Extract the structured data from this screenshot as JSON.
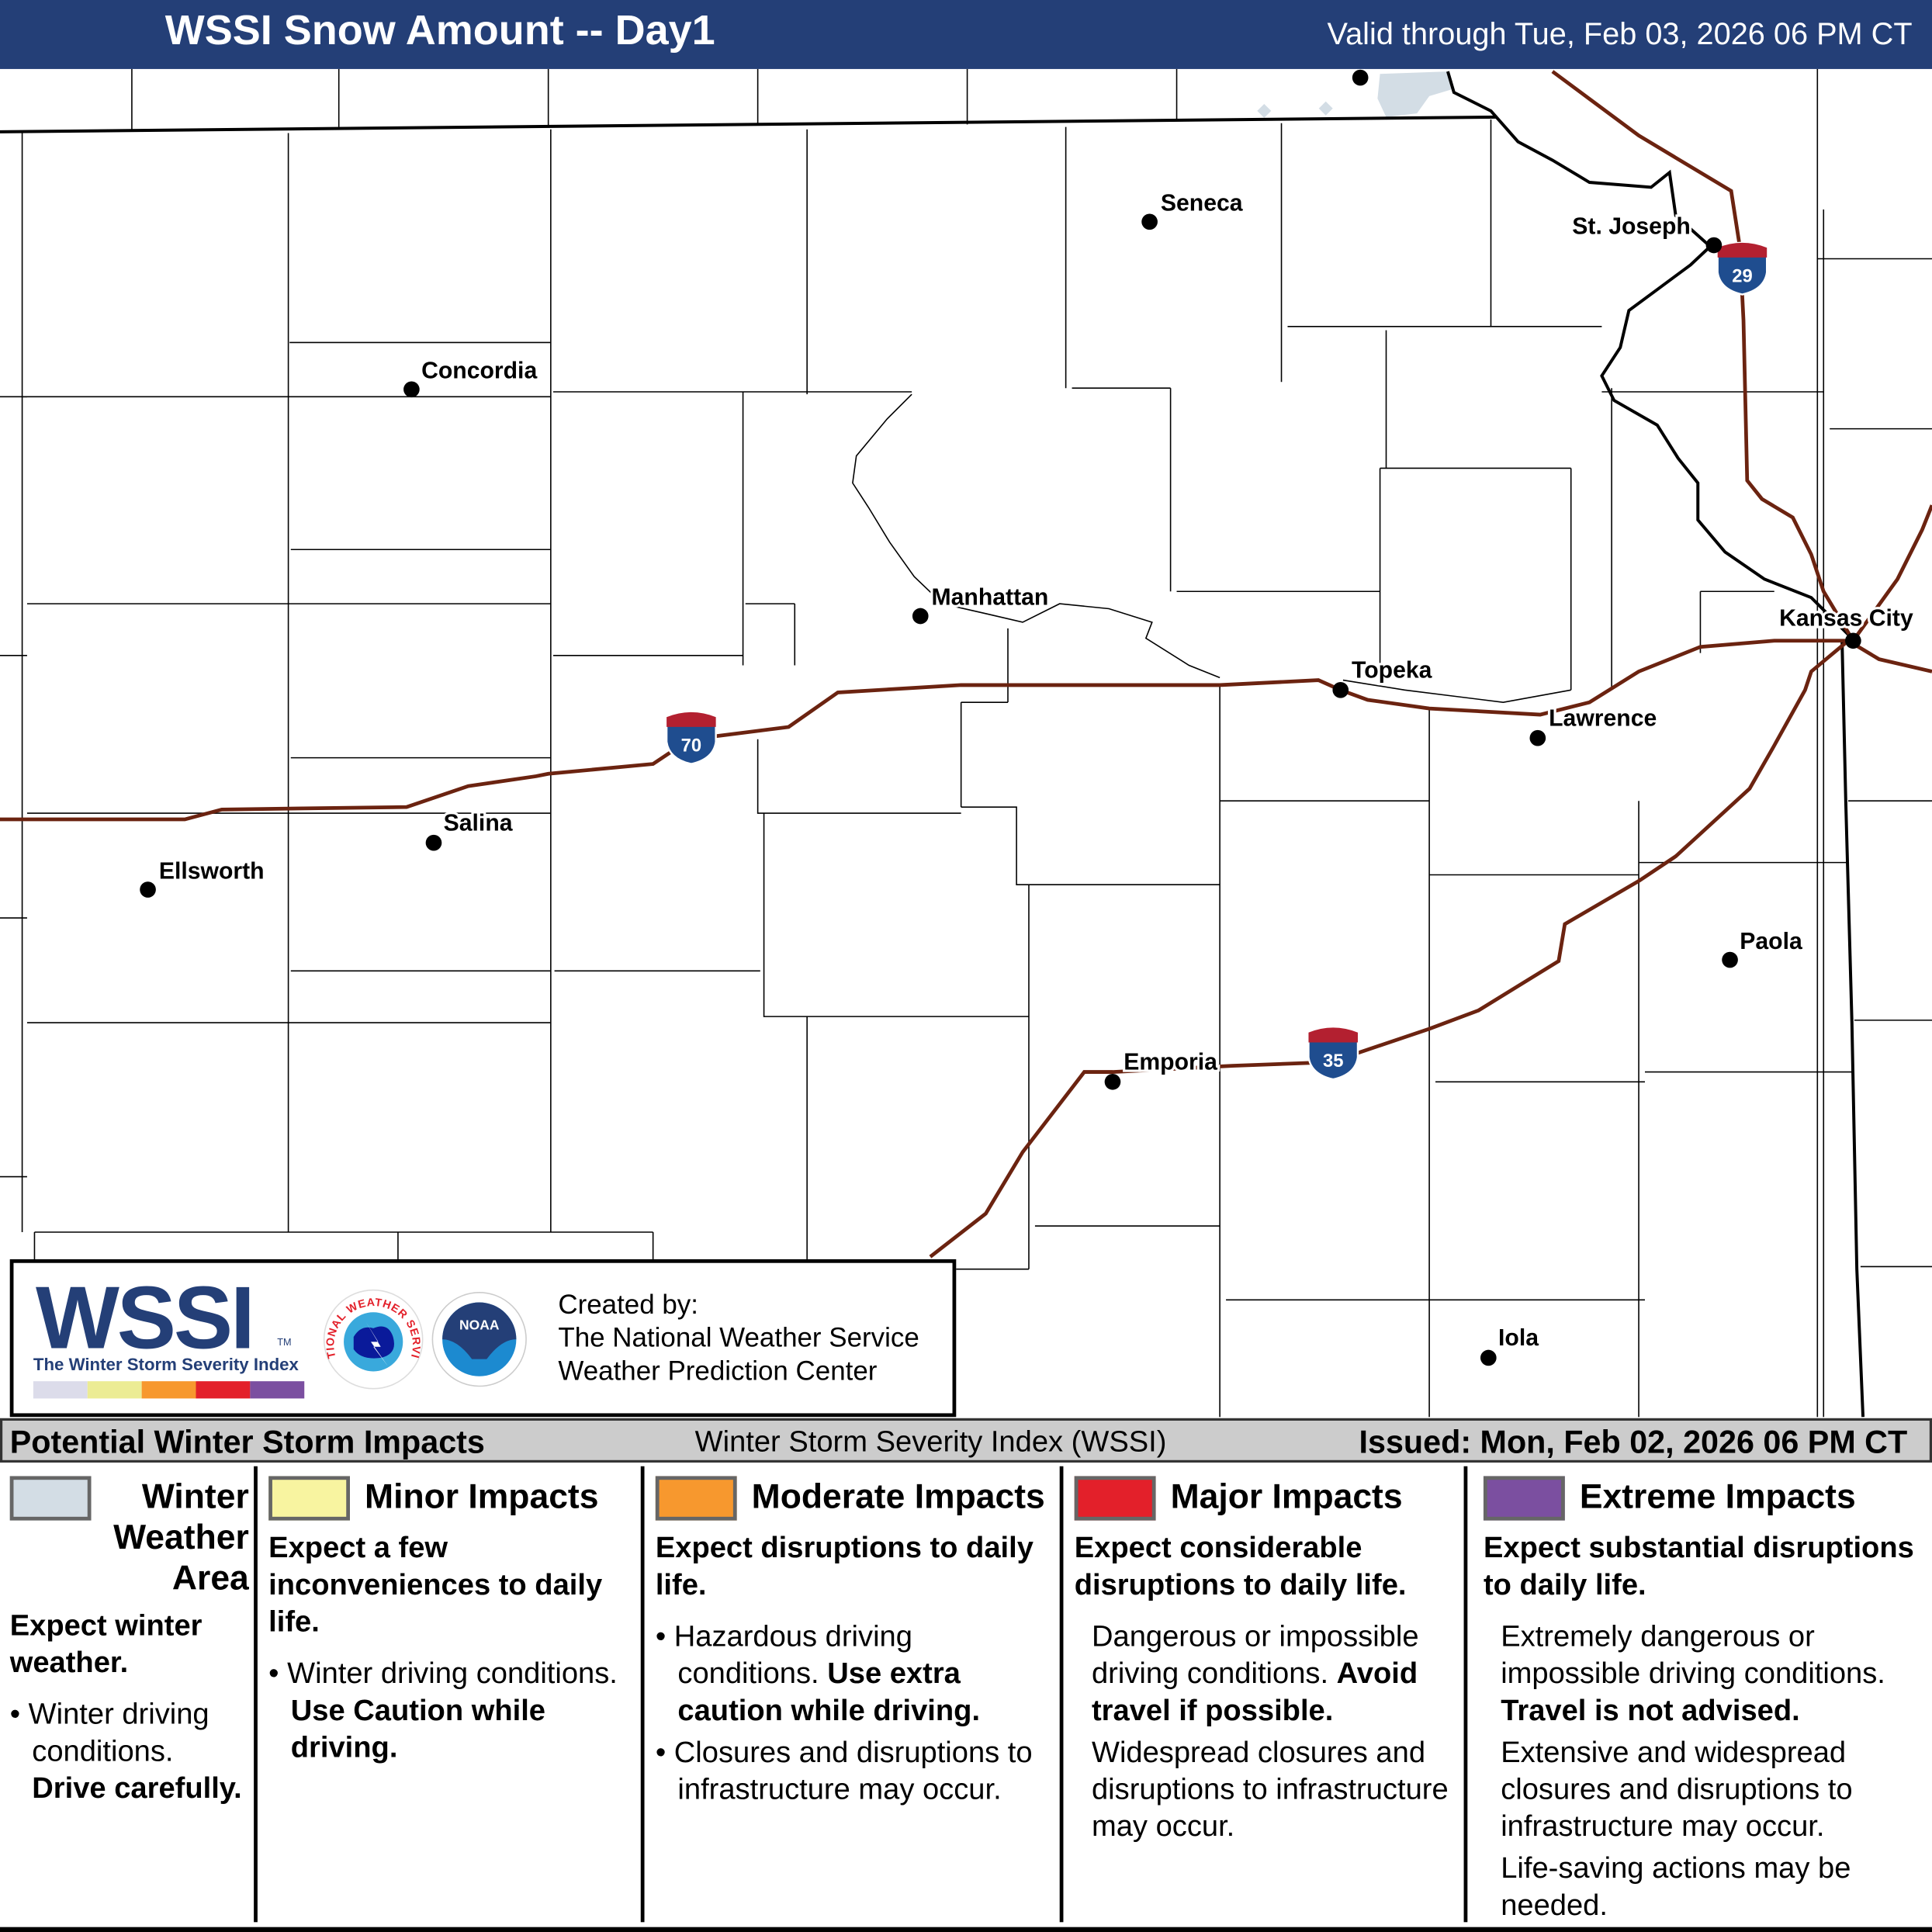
{
  "header": {
    "title": "WSSI Snow Amount -- Day1",
    "valid": "Valid through Tue, Feb 03, 2026 06 PM CT"
  },
  "map": {
    "cities": [
      {
        "name": "Seneca"
      },
      {
        "name": "Concordia"
      },
      {
        "name": "Manhattan"
      },
      {
        "name": "Topeka"
      },
      {
        "name": "Lawrence"
      },
      {
        "name": "Kansas City"
      },
      {
        "name": "Salina"
      },
      {
        "name": "Ellsworth"
      },
      {
        "name": "Emporia"
      },
      {
        "name": "Paola"
      },
      {
        "name": "Iola"
      },
      {
        "name": "St. Joseph"
      }
    ],
    "interstates": [
      {
        "number": "70"
      },
      {
        "number": "35"
      },
      {
        "number": "29"
      }
    ],
    "colors": {
      "road": "#6b2310",
      "border": "#000000",
      "water": "#d3dde5",
      "shield_blue": "#1f4d8f",
      "shield_red": "#b32030"
    }
  },
  "logo": {
    "wssi": "WSSI",
    "tm": "TM",
    "subtitle": "The Winter Storm Severity Index",
    "created_by": "Created by:",
    "org1": "The National Weather Service",
    "org2": "Weather Prediction Center",
    "nws_text": "NATIONAL WEATHER SERVICE",
    "noaa_text": "NOAA"
  },
  "legend": {
    "title": "Potential Winter Storm Impacts",
    "index_name": "Winter Storm Severity Index (WSSI)",
    "issued": "Issued: Mon, Feb 02, 2026 06 PM CT",
    "categories": [
      {
        "label": "Winter Weather Area",
        "color": "#d3dde5",
        "headline": "Expect winter weather.",
        "b1": "Winter driving conditions.",
        "b1_bold": "Drive carefully."
      },
      {
        "label": "Minor Impacts",
        "color": "#f8f4a0",
        "headline": "Expect a few inconveniences to daily life.",
        "b1": "Winter driving conditions.",
        "b1_bold": "Use Caution while driving."
      },
      {
        "label": "Moderate Impacts",
        "color": "#f7982e",
        "headline": "Expect disruptions to daily life.",
        "b1": "Hazardous driving conditions.",
        "b1_bold": "Use extra caution while driving.",
        "b2": "Closures and disruptions to infrastructure may occur."
      },
      {
        "label": "Major Impacts",
        "color": "#e3202a",
        "headline": "Expect considerable disruptions to daily life.",
        "b1": "Dangerous or impossible driving conditions.",
        "b1_bold": "Avoid travel if possible.",
        "b2": "Widespread closures and disruptions to infrastructure may occur."
      },
      {
        "label": "Extreme Impacts",
        "color": "#7b4fa0",
        "headline": "Expect substantial disruptions to daily life.",
        "b1": "Extremely dangerous or impossible driving conditions.",
        "b1_bold": "Travel is not advised.",
        "b2": "Extensive and widespread closures and disruptions to infrastructure may occur.",
        "b3": "Life-saving actions may be needed."
      }
    ]
  }
}
